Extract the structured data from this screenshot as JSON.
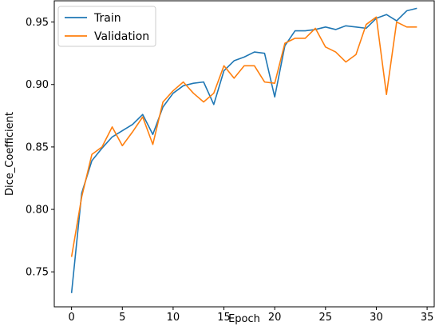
{
  "chart_data": {
    "type": "line",
    "title": "",
    "xlabel": "Epoch",
    "ylabel": "Dice_Coefficient",
    "xlim": [
      -1.7,
      35.7
    ],
    "ylim": [
      0.722,
      0.967
    ],
    "x_ticks": [
      0,
      5,
      10,
      15,
      20,
      25,
      30,
      35
    ],
    "y_ticks": [
      0.75,
      0.8,
      0.85,
      0.9,
      0.95
    ],
    "grid": false,
    "legend_position": "top-left",
    "x": [
      0,
      1,
      2,
      3,
      4,
      5,
      6,
      7,
      8,
      9,
      10,
      11,
      12,
      13,
      14,
      15,
      16,
      17,
      18,
      19,
      20,
      21,
      22,
      23,
      24,
      25,
      26,
      27,
      28,
      29,
      30,
      31,
      32,
      33,
      34
    ],
    "series": [
      {
        "name": "Train",
        "color": "#1f77b4",
        "values": [
          0.733,
          0.813,
          0.839,
          0.849,
          0.858,
          0.863,
          0.868,
          0.876,
          0.86,
          0.882,
          0.893,
          0.899,
          0.901,
          0.902,
          0.884,
          0.911,
          0.919,
          0.922,
          0.926,
          0.925,
          0.89,
          0.931,
          0.943,
          0.943,
          0.944,
          0.946,
          0.944,
          0.947,
          0.946,
          0.945,
          0.953,
          0.956,
          0.951,
          0.959,
          0.961
        ]
      },
      {
        "name": "Validation",
        "color": "#ff7f0e",
        "values": [
          0.762,
          0.81,
          0.844,
          0.85,
          0.866,
          0.851,
          0.862,
          0.874,
          0.852,
          0.886,
          0.895,
          0.902,
          0.893,
          0.886,
          0.893,
          0.915,
          0.905,
          0.915,
          0.915,
          0.902,
          0.901,
          0.933,
          0.937,
          0.937,
          0.945,
          0.93,
          0.926,
          0.918,
          0.924,
          0.948,
          0.954,
          0.892,
          0.95,
          0.946,
          0.946
        ]
      }
    ]
  }
}
